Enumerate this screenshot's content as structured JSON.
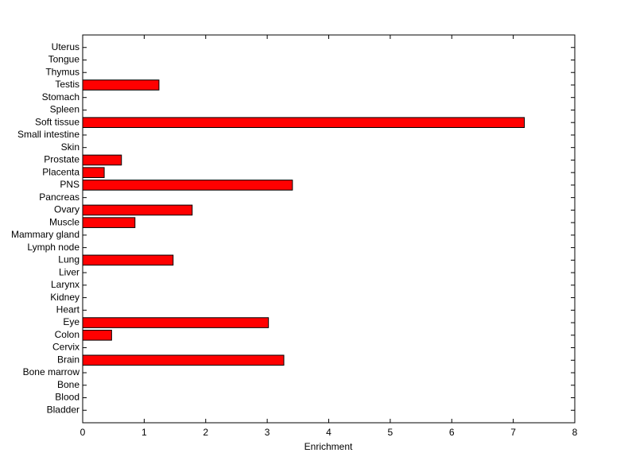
{
  "chart_data": {
    "type": "barh",
    "xlabel": "Enrichment",
    "categories": [
      "Bladder",
      "Blood",
      "Bone",
      "Bone marrow",
      "Brain",
      "Cervix",
      "Colon",
      "Eye",
      "Heart",
      "Kidney",
      "Larynx",
      "Liver",
      "Lung",
      "Lymph node",
      "Mammary gland",
      "Muscle",
      "Ovary",
      "Pancreas",
      "PNS",
      "Placenta",
      "Prostate",
      "Skin",
      "Small intestine",
      "Soft tissue",
      "Spleen",
      "Stomach",
      "Testis",
      "Thymus",
      "Tongue",
      "Uterus"
    ],
    "values": [
      0,
      0,
      0,
      0,
      3.27,
      0,
      0.47,
      3.02,
      0,
      0,
      0,
      0,
      1.47,
      0,
      0,
      0.85,
      1.78,
      0,
      3.41,
      0.35,
      0.63,
      0,
      0,
      7.18,
      0,
      0,
      1.24,
      0,
      0,
      0
    ],
    "color": "#ff0000",
    "xlim": [
      0,
      8
    ],
    "xticks": [
      0,
      1,
      2,
      3,
      4,
      5,
      6,
      7,
      8
    ]
  }
}
